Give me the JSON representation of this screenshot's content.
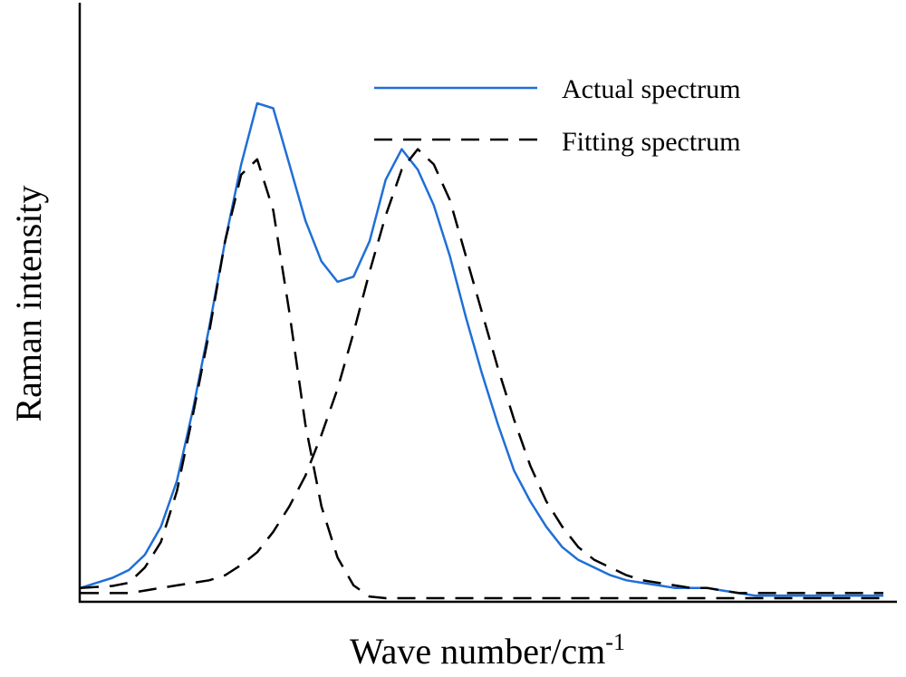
{
  "chart_data": {
    "type": "line",
    "title": "",
    "xlabel": "Wave number/cm",
    "xlabel_superscript": "-1",
    "ylabel": "Raman intensity",
    "xlim": [
      0,
      100
    ],
    "ylim": [
      0,
      100
    ],
    "grid": false,
    "ticks": false,
    "legend_placement": "top-right",
    "x": [
      0,
      2,
      4,
      6,
      8,
      10,
      12,
      14,
      16,
      18,
      20,
      22,
      24,
      26,
      28,
      30,
      32,
      34,
      36,
      38,
      40,
      42,
      44,
      46,
      48,
      50,
      52,
      54,
      56,
      58,
      60,
      62,
      64,
      66,
      68,
      70,
      72,
      74,
      76,
      78,
      80,
      82,
      84,
      86,
      88,
      90,
      92,
      94,
      96,
      98,
      100
    ],
    "series": [
      {
        "name": "Actual spectrum",
        "style": "solid",
        "color": "#1f6fd6",
        "values": [
          2.0,
          3.0,
          4.0,
          5.5,
          8.5,
          14,
          23,
          37,
          53,
          70,
          85,
          97,
          96,
          85,
          74,
          66,
          62,
          63,
          70,
          82,
          88,
          84,
          77,
          67,
          55,
          44,
          34,
          25,
          19,
          14,
          10,
          7.5,
          6.0,
          4.5,
          3.5,
          3.0,
          2.5,
          2.0,
          2.0,
          2.0,
          1.5,
          1.0,
          0.5,
          0.5,
          0.5,
          0.5,
          0.5,
          0.5,
          0.5,
          0.5,
          0.5
        ]
      },
      {
        "name": "Fitting spectrum",
        "style": "dashed",
        "color": "#000000",
        "values": [
          2.0,
          2.2,
          2.4,
          3.0,
          6.0,
          11,
          21,
          36,
          52,
          70,
          83,
          86,
          76,
          56,
          34,
          18,
          8.0,
          2.5,
          0.3,
          0.0,
          0.0,
          0.0,
          0.0,
          0.0,
          0.0,
          0.0,
          0.0,
          0.0,
          0.0,
          0.0,
          0.0,
          0.0,
          0.0,
          0.0,
          0.0,
          0.0,
          0.0,
          0.0,
          0.0,
          0.0,
          0.0,
          0.0,
          0.0,
          0.0,
          0.0,
          0.0,
          0.0,
          0.0,
          0.0,
          0.0,
          0.0
        ]
      },
      {
        "name": "",
        "style": "dashed",
        "color": "#000000",
        "values": [
          1.0,
          1.0,
          1.0,
          1.0,
          1.5,
          2.0,
          2.5,
          3.0,
          3.5,
          4.5,
          6.5,
          9.0,
          13,
          18,
          24,
          32,
          41,
          52,
          64,
          75,
          84,
          88,
          85,
          78,
          67,
          56,
          45,
          35,
          26,
          19,
          14,
          10,
          7.5,
          6.0,
          4.5,
          3.5,
          3.0,
          2.5,
          2.0,
          2.0,
          1.5,
          1.0,
          1.0,
          1.0,
          1.0,
          1.0,
          1.0,
          1.0,
          1.0,
          1.0,
          1.0
        ]
      }
    ]
  }
}
